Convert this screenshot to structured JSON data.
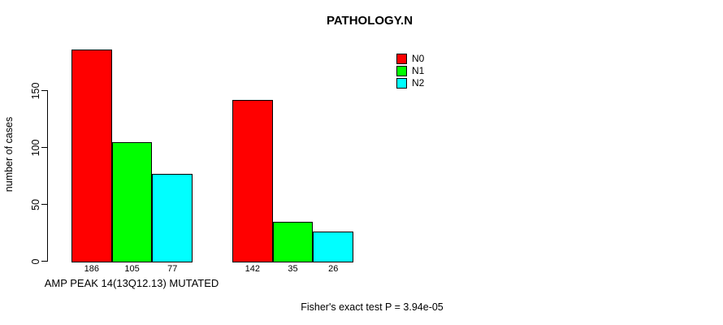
{
  "title": "PATHOLOGY.N",
  "y_axis": {
    "label": "number of cases",
    "tick_labels": [
      "0",
      "50",
      "100",
      "150"
    ]
  },
  "x_axis": {
    "label": "AMP PEAK 14(13Q12.13) MUTATED"
  },
  "footer": "Fisher's exact test P = 3.94e-05",
  "legend": {
    "items": [
      {
        "label": "N0",
        "color": "#FF0000"
      },
      {
        "label": "N1",
        "color": "#00FF00"
      },
      {
        "label": "N2",
        "color": "#00FFFF"
      }
    ]
  },
  "chart_data": {
    "type": "bar",
    "title": "PATHOLOGY.N",
    "xlabel": "AMP PEAK 14(13Q12.13) MUTATED",
    "ylabel": "number of cases",
    "ylim": [
      0,
      150
    ],
    "yticks": [
      0,
      50,
      100,
      150
    ],
    "grid": false,
    "legend_position": "top-right",
    "group_count": 2,
    "series": [
      {
        "name": "N0",
        "color": "#FF0000",
        "values": [
          186,
          142
        ]
      },
      {
        "name": "N1",
        "color": "#00FF00",
        "values": [
          105,
          35
        ]
      },
      {
        "name": "N2",
        "color": "#00FFFF",
        "values": [
          77,
          26
        ]
      }
    ],
    "bar_value_labels": [
      "186",
      "105",
      "77",
      "142",
      "35",
      "26"
    ],
    "annotation": "Fisher's exact test P = 3.94e-05"
  }
}
